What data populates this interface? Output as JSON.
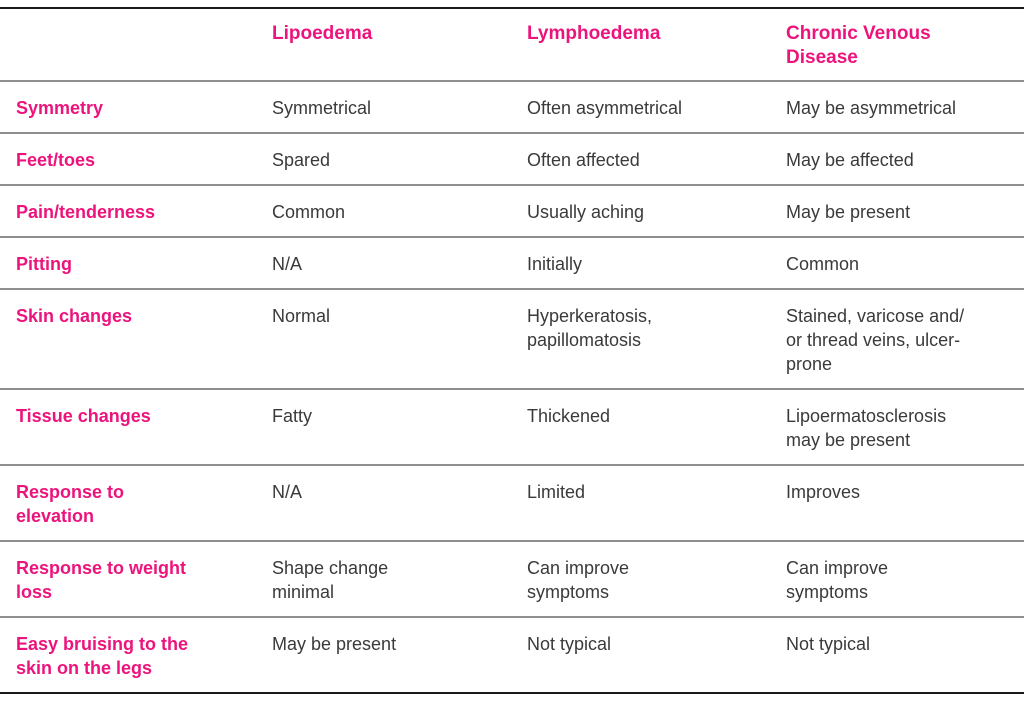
{
  "colors": {
    "accent_pink": "#ec147c",
    "body_text": "#3a3a3a",
    "row_divider": "#8f8f8f",
    "frame_border": "#1a1a1a",
    "background": "#ffffff"
  },
  "table": {
    "columns": [
      "",
      "Lipoedema",
      "Lymphoedema",
      "Chronic Venous\nDisease"
    ],
    "rows": [
      {
        "label": "Symmetry",
        "cells": [
          "Symmetrical",
          "Often asymmetrical",
          "May be asymmetrical"
        ]
      },
      {
        "label": "Feet/toes",
        "cells": [
          "Spared",
          "Often affected",
          "May be affected"
        ]
      },
      {
        "label": "Pain/tenderness",
        "cells": [
          "Common",
          "Usually aching",
          "May be present"
        ]
      },
      {
        "label": "Pitting",
        "cells": [
          "N/A",
          "Initially",
          "Common"
        ]
      },
      {
        "label": "Skin changes",
        "cells": [
          "Normal",
          "Hyperkeratosis,\npapillomatosis",
          "Stained, varicose and/\nor thread veins, ulcer-\nprone"
        ]
      },
      {
        "label": "Tissue changes",
        "cells": [
          "Fatty",
          "Thickened",
          "Lipoermatosclerosis\nmay be present"
        ]
      },
      {
        "label": "Response to\nelevation",
        "cells": [
          "N/A",
          "Limited",
          "Improves"
        ]
      },
      {
        "label": "Response to weight\nloss",
        "cells": [
          "Shape change\nminimal",
          "Can improve\nsymptoms",
          "Can improve\nsymptoms"
        ]
      },
      {
        "label": "Easy bruising to the\nskin on the legs",
        "cells": [
          "May be present",
          "Not typical",
          "Not typical"
        ]
      }
    ]
  }
}
